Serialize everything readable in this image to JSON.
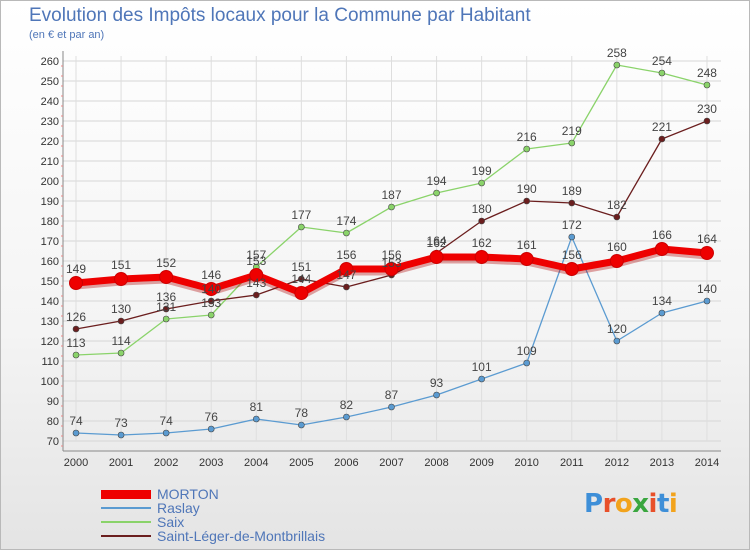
{
  "header": {
    "title": "Evolution des Impôts locaux pour la Commune par Habitant",
    "subtitle": "(en € et par an)"
  },
  "logo": {
    "text": "Proxiti",
    "letters": [
      "P",
      "r",
      "o",
      "x",
      "i",
      "t",
      "i"
    ],
    "colors": [
      "#3e8fd8",
      "#e8502a",
      "#f2a31c",
      "#3aa63f",
      "#e8502a",
      "#3e8fd8",
      "#f2a31c"
    ]
  },
  "chart_data": {
    "type": "line",
    "title": "Evolution des Impôts locaux pour la Commune par Habitant",
    "subtitle": "(en € et par an)",
    "xlabel": "",
    "ylabel": "",
    "x": [
      2000,
      2001,
      2002,
      2003,
      2004,
      2005,
      2006,
      2007,
      2008,
      2009,
      2010,
      2011,
      2012,
      2013,
      2014
    ],
    "ylim": [
      70,
      260
    ],
    "yticks": [
      70,
      80,
      90,
      100,
      110,
      120,
      130,
      140,
      150,
      160,
      170,
      180,
      190,
      200,
      210,
      220,
      230,
      240,
      250,
      260
    ],
    "grid": true,
    "legend": "bottom-left",
    "series": [
      {
        "name": "MORTON",
        "color": "#ee0000",
        "thick": true,
        "values": [
          149,
          151,
          152,
          146,
          153,
          144,
          156,
          156,
          162,
          162,
          161,
          156,
          160,
          166,
          164
        ]
      },
      {
        "name": "Raslay",
        "color": "#5b9bd1",
        "thick": false,
        "values": [
          74,
          73,
          74,
          76,
          81,
          78,
          82,
          87,
          93,
          101,
          109,
          172,
          120,
          134,
          140
        ]
      },
      {
        "name": "Saix",
        "color": "#8ad36a",
        "thick": false,
        "values": [
          113,
          114,
          131,
          133,
          157,
          177,
          174,
          187,
          194,
          199,
          216,
          219,
          258,
          254,
          248
        ]
      },
      {
        "name": "Saint-Léger-de-Montbrillais",
        "color": "#6b1e1e",
        "thick": false,
        "values": [
          126,
          130,
          136,
          140,
          143,
          151,
          147,
          153,
          164,
          180,
          190,
          189,
          182,
          221,
          230
        ]
      }
    ]
  }
}
